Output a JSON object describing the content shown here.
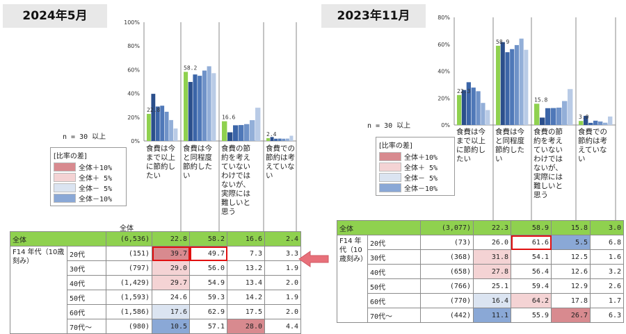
{
  "panels": [
    {
      "id": "left",
      "title": "2024年5月",
      "n_label": "n = 30 以上",
      "legend": {
        "title": "[比率の差]",
        "items": [
          {
            "label": "全体＋10%",
            "color": "#d88a8f"
          },
          {
            "label": "全体＋ 5%",
            "color": "#f4d3d4"
          },
          {
            "label": "全体－ 5%",
            "color": "#dbe4f1"
          },
          {
            "label": "全体－10%",
            "color": "#8aa8d6"
          }
        ]
      },
      "table": {
        "total_header": "全体",
        "total": {
          "label": "全体",
          "n": "(6,536)",
          "values": [
            "22.8",
            "58.2",
            "16.6",
            "2.4"
          ]
        },
        "group_label": "F14 年代（10歳刻み）",
        "rows": [
          {
            "label": "20代",
            "n": "(151)",
            "values": [
              "39.7",
              "49.7",
              "7.3",
              "3.3"
            ],
            "cls": [
              "h1 boxed",
              "boxed",
              "",
              ""
            ]
          },
          {
            "label": "30代",
            "n": "(797)",
            "values": [
              "29.0",
              "56.0",
              "13.2",
              "1.9"
            ],
            "cls": [
              "h2",
              "",
              "",
              ""
            ]
          },
          {
            "label": "40代",
            "n": "(1,429)",
            "values": [
              "29.7",
              "54.9",
              "13.4",
              "2.0"
            ],
            "cls": [
              "h2",
              "",
              "",
              ""
            ]
          },
          {
            "label": "50代",
            "n": "(1,593)",
            "values": [
              "24.6",
              "59.3",
              "14.2",
              "1.9"
            ],
            "cls": [
              "",
              "",
              "",
              ""
            ]
          },
          {
            "label": "60代",
            "n": "(1,586)",
            "values": [
              "17.6",
              "62.9",
              "17.5",
              "2.0"
            ],
            "cls": [
              "h3",
              "",
              "",
              ""
            ]
          },
          {
            "label": "70代～",
            "n": "(980)",
            "values": [
              "10.5",
              "57.1",
              "28.0",
              "4.4"
            ],
            "cls": [
              "h4",
              "",
              "h1",
              ""
            ]
          }
        ]
      }
    },
    {
      "id": "right",
      "title": "2023年11月",
      "n_label": "n = 30 以上",
      "legend": {
        "title": "[比率の差]",
        "items": [
          {
            "label": "全体＋10%",
            "color": "#d88a8f"
          },
          {
            "label": "全体＋ 5%",
            "color": "#f4d3d4"
          },
          {
            "label": "全体－ 5%",
            "color": "#dbe4f1"
          },
          {
            "label": "全体－10%",
            "color": "#8aa8d6"
          }
        ]
      },
      "table": {
        "total_header": "",
        "total": {
          "label": "全体",
          "n": "(3,077)",
          "values": [
            "22.3",
            "58.9",
            "15.8",
            "3.0"
          ]
        },
        "group_label": "F14 年代（10歳刻み）",
        "rows": [
          {
            "label": "20代",
            "n": "(73)",
            "values": [
              "26.0",
              "61.6",
              "5.5",
              "6.8"
            ],
            "cls": [
              "",
              "boxed",
              "h4",
              ""
            ]
          },
          {
            "label": "30代",
            "n": "(368)",
            "values": [
              "31.8",
              "54.1",
              "12.5",
              "1.6"
            ],
            "cls": [
              "h2",
              "",
              "",
              ""
            ]
          },
          {
            "label": "40代",
            "n": "(658)",
            "values": [
              "27.8",
              "56.4",
              "12.6",
              "3.2"
            ],
            "cls": [
              "h2",
              "",
              "",
              ""
            ]
          },
          {
            "label": "50代",
            "n": "(766)",
            "values": [
              "25.1",
              "59.4",
              "12.9",
              "2.6"
            ],
            "cls": [
              "",
              "",
              "",
              ""
            ]
          },
          {
            "label": "60代",
            "n": "(770)",
            "values": [
              "16.4",
              "64.2",
              "17.8",
              "1.7"
            ],
            "cls": [
              "h3",
              "h2",
              "",
              ""
            ]
          },
          {
            "label": "70代～",
            "n": "(442)",
            "values": [
              "11.1",
              "55.9",
              "26.7",
              "6.3"
            ],
            "cls": [
              "h4",
              "",
              "h1",
              ""
            ]
          }
        ]
      }
    }
  ],
  "chart_data": [
    {
      "type": "bar",
      "title": "2024年5月",
      "categories": [
        "食費は今まで以上に節約したい",
        "食費は今と同程度節約したい",
        "食費の節約を考えていないわけではないが、実際には難しいと思う",
        "食費での節約は考えていない"
      ],
      "category_lines": [
        [
          "食費は今",
          "まで以上",
          "に節約し",
          "たい"
        ],
        [
          "食費は今",
          "と同程度",
          "節約した",
          "い"
        ],
        [
          "食費の節",
          "約を考え",
          "ていない",
          "わけでは",
          "ないが、",
          "実際には",
          "難しいと",
          "思う"
        ],
        [
          "食費での",
          "節約は考",
          "えていな",
          "い"
        ]
      ],
      "total_labels": [
        "22.8",
        "58.2",
        "16.6",
        "2.4"
      ],
      "ylim": [
        0,
        100
      ],
      "yticks": [
        "0%",
        "20%",
        "40%",
        "60%",
        "80%",
        "100%"
      ],
      "series": [
        {
          "values": [
            22.8,
            58.2,
            16.6,
            2.4
          ],
          "color": "#8fd14f"
        },
        {
          "values": [
            39.7,
            49.7,
            7.3,
            3.3
          ],
          "color": "#2b4f8c"
        },
        {
          "values": [
            29.0,
            56.0,
            13.2,
            1.9
          ],
          "color": "#3b65a8"
        },
        {
          "values": [
            29.7,
            54.9,
            13.4,
            2.0
          ],
          "color": "#4f78b8"
        },
        {
          "values": [
            24.6,
            59.3,
            14.2,
            1.9
          ],
          "color": "#6f92c8"
        },
        {
          "values": [
            17.6,
            62.9,
            17.5,
            2.0
          ],
          "color": "#93afd8"
        },
        {
          "values": [
            10.5,
            57.1,
            28.0,
            4.4
          ],
          "color": "#b9cbe6"
        }
      ]
    },
    {
      "type": "bar",
      "title": "2023年11月",
      "categories": [
        "食費は今まで以上に節約したい",
        "食費は今と同程度節約したい",
        "食費の節約を考えていないわけではないが、実際には難しいと思う",
        "食費での節約は考えていない"
      ],
      "category_lines": [
        [
          "食費は今",
          "まで以上",
          "に節約し",
          "たい"
        ],
        [
          "食費は今",
          "と同程度",
          "節約した",
          "い"
        ],
        [
          "食費の節",
          "約を考え",
          "ていない",
          "わけでは",
          "ないが、",
          "実際には",
          "難しいと",
          "思う"
        ],
        [
          "食費での",
          "節約は考",
          "えていな",
          "い"
        ]
      ],
      "total_labels": [
        "22.3",
        "58.9",
        "15.8",
        "3.0"
      ],
      "ylim": [
        0,
        80
      ],
      "yticks": [
        "0%",
        "20%",
        "40%",
        "60%",
        "80%"
      ],
      "series": [
        {
          "values": [
            22.3,
            58.9,
            15.8,
            3.0
          ],
          "color": "#8fd14f"
        },
        {
          "values": [
            26.0,
            61.6,
            5.5,
            6.8
          ],
          "color": "#2b4f8c"
        },
        {
          "values": [
            31.8,
            54.1,
            12.5,
            1.6
          ],
          "color": "#3b65a8"
        },
        {
          "values": [
            27.8,
            56.4,
            12.6,
            3.2
          ],
          "color": "#4f78b8"
        },
        {
          "values": [
            25.1,
            59.4,
            12.9,
            2.6
          ],
          "color": "#6f92c8"
        },
        {
          "values": [
            16.4,
            64.2,
            17.8,
            1.7
          ],
          "color": "#93afd8"
        },
        {
          "values": [
            11.1,
            55.9,
            26.7,
            6.3
          ],
          "color": "#b9cbe6"
        }
      ]
    }
  ],
  "arrow_color": "#e8707a"
}
